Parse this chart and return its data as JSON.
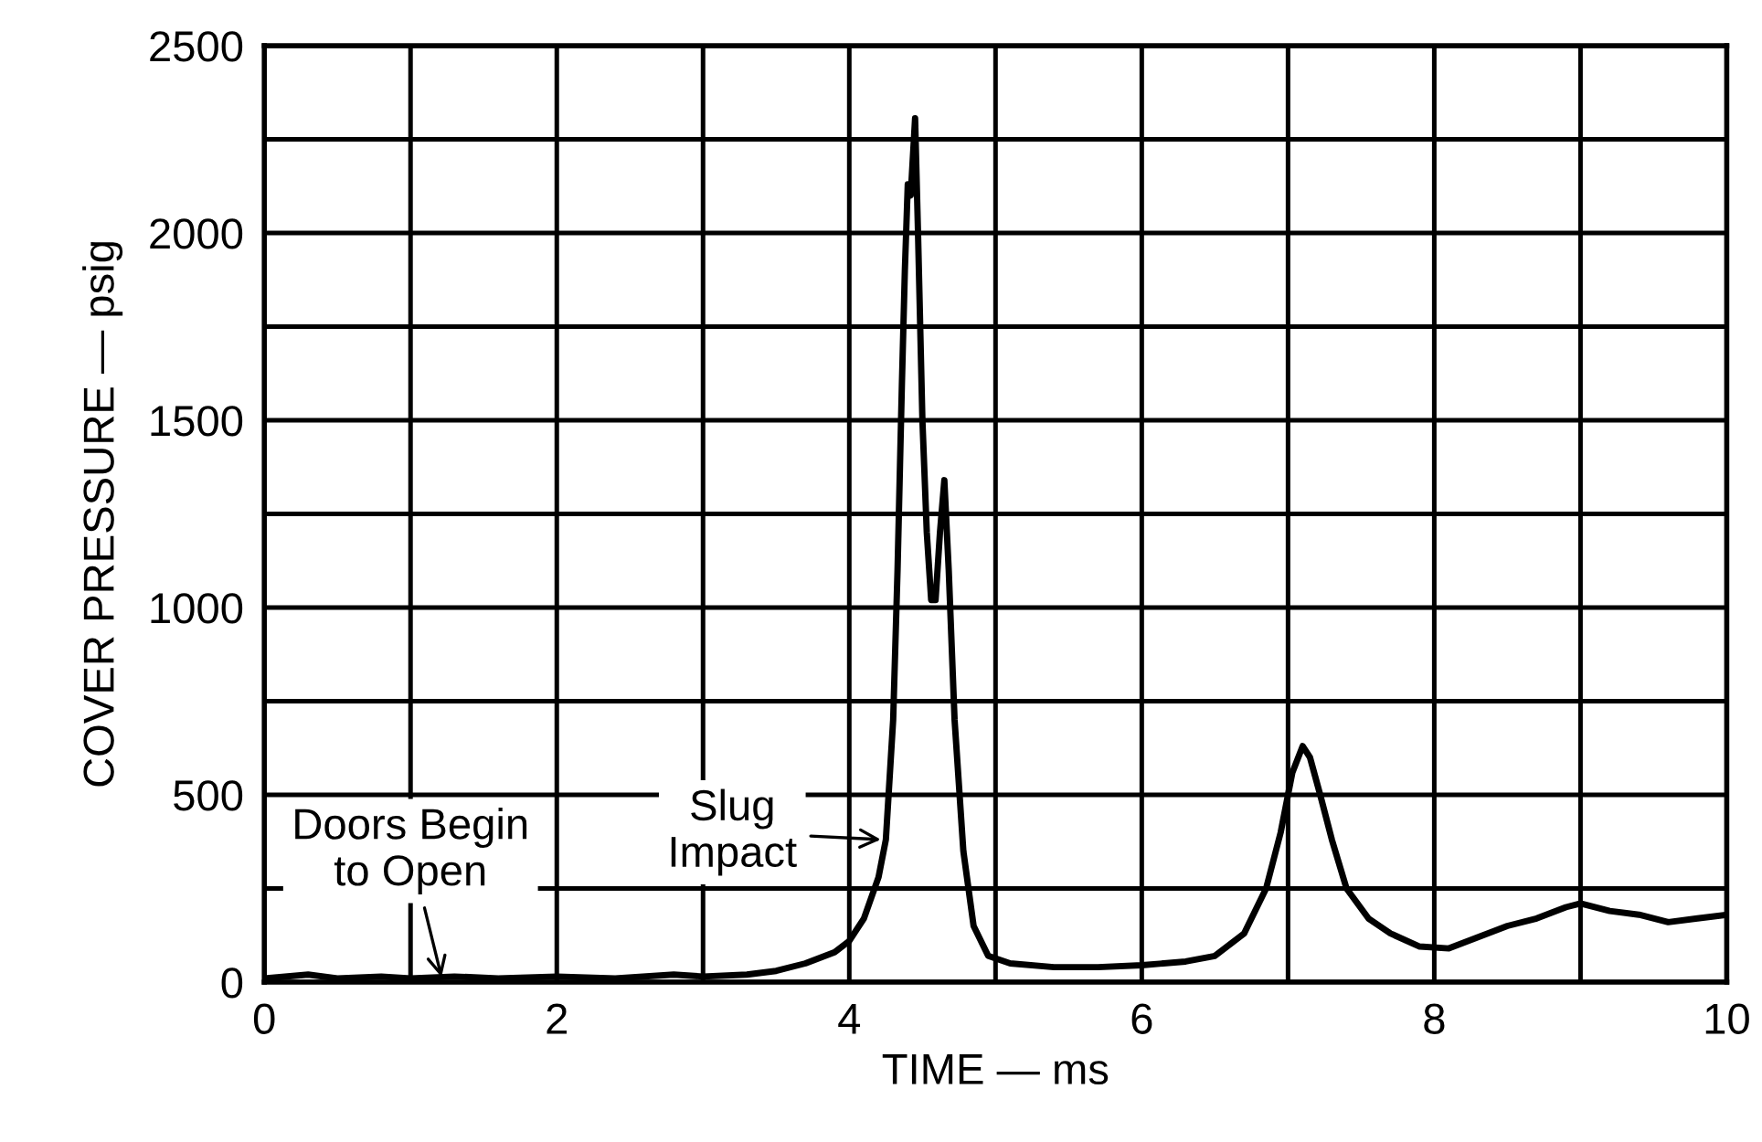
{
  "chart_data": {
    "type": "line",
    "xlabel": "TIME — ms",
    "ylabel": "COVER PRESSURE — psig",
    "xlim": [
      0,
      10
    ],
    "ylim": [
      0,
      2500
    ],
    "xticks": [
      0,
      {
        "value": 1,
        "label": null
      },
      2,
      {
        "value": 3,
        "label": null
      },
      4,
      {
        "value": 5,
        "label": null
      },
      6,
      {
        "value": 7,
        "label": null
      },
      8,
      {
        "value": 9,
        "label": null
      },
      10
    ],
    "yticks": [
      0,
      {
        "value": 250,
        "label": null
      },
      500,
      {
        "value": 750,
        "label": null
      },
      1000,
      {
        "value": 1250,
        "label": null
      },
      1500,
      {
        "value": 1750,
        "label": null
      },
      2000,
      {
        "value": 2250,
        "label": null
      },
      2500
    ],
    "grid": true,
    "legend": false,
    "marker": "none",
    "line_style": "solid",
    "series": [
      {
        "color": "#000000",
        "x": [
          0,
          0.3,
          0.5,
          0.8,
          1.0,
          1.3,
          1.6,
          2.0,
          2.4,
          2.8,
          3.0,
          3.3,
          3.5,
          3.7,
          3.9,
          4.0,
          4.1,
          4.2,
          4.25,
          4.3,
          4.33,
          4.36,
          4.38,
          4.4,
          4.42,
          4.45,
          4.47,
          4.5,
          4.53,
          4.56,
          4.59,
          4.62,
          4.65,
          4.68,
          4.72,
          4.78,
          4.85,
          4.95,
          5.1,
          5.4,
          5.7,
          6.0,
          6.3,
          6.5,
          6.7,
          6.85,
          6.95,
          7.03,
          7.1,
          7.15,
          7.22,
          7.3,
          7.4,
          7.55,
          7.7,
          7.9,
          8.1,
          8.3,
          8.5,
          8.7,
          8.9,
          9.0,
          9.2,
          9.4,
          9.6,
          9.8,
          10.0
        ],
        "values": [
          10,
          20,
          10,
          15,
          10,
          15,
          10,
          15,
          10,
          20,
          15,
          20,
          30,
          50,
          80,
          110,
          170,
          280,
          380,
          700,
          1100,
          1600,
          1900,
          2130,
          2100,
          2306,
          2000,
          1500,
          1200,
          1020,
          1020,
          1200,
          1340,
          1100,
          700,
          350,
          150,
          70,
          50,
          40,
          40,
          45,
          55,
          70,
          130,
          250,
          400,
          560,
          630,
          600,
          500,
          380,
          250,
          170,
          130,
          95,
          90,
          120,
          150,
          170,
          200,
          210,
          190,
          180,
          160,
          170,
          180
        ]
      }
    ],
    "annotations": [
      {
        "text": "Doors Begin\nto Open",
        "x": 1.22,
        "y": 0
      },
      {
        "text": "Slug\nImpact",
        "x": 4.25,
        "y": 380
      }
    ]
  }
}
